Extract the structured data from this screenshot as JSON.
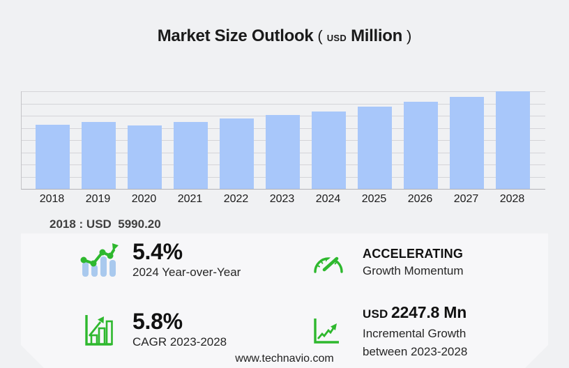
{
  "title": {
    "main": "Market Size Outlook",
    "paren_open": "(",
    "currency": "USD",
    "unit": "Million",
    "paren_close": ")"
  },
  "chart_data": {
    "type": "bar",
    "title": "Market Size Outlook (USD Million)",
    "categories": [
      "2018",
      "2019",
      "2020",
      "2021",
      "2022",
      "2023",
      "2024",
      "2025",
      "2026",
      "2027",
      "2028"
    ],
    "values": [
      5990.2,
      6245.0,
      5972.0,
      6252.0,
      6576.0,
      6899.3,
      7271.9,
      7703.0,
      8140.0,
      8601.0,
      9147.1
    ],
    "unit": "USD Million",
    "xlabel": "",
    "ylabel": "",
    "ylim": [
      0,
      9147.1
    ],
    "grid": true,
    "gridline_count": 9,
    "legend": "none"
  },
  "annotation": {
    "base_year_value": "2018 : USD  5990.20"
  },
  "stats": {
    "yoy": {
      "value": "5.4%",
      "label": "2024 Year-over-Year"
    },
    "momentum": {
      "value": "ACCELERATING",
      "label": "Growth Momentum"
    },
    "cagr": {
      "value": "5.8%",
      "label": "CAGR 2023-2028"
    },
    "incremental": {
      "currency": "USD",
      "value": "2247.8 Mn",
      "label_line1": "Incremental Growth",
      "label_line2": "between 2023-2028"
    }
  },
  "icons": {
    "yoy": "bar-chart-trend-up-icon",
    "momentum": "speedometer-gauge-icon",
    "cagr": "growth-bars-arrow-icon",
    "incremental": "line-chart-arrow-icon"
  },
  "footer": {
    "website": "www.technavio.com"
  },
  "colors": {
    "background": "#f0f1f3",
    "panel": "#f7f7f9",
    "bar": "#a8c7fa",
    "icon_bar_blue": "#a9c9ee",
    "accent_green": "#2eb82e",
    "gridline": "#d4d4d8",
    "text_dark": "#111111"
  }
}
